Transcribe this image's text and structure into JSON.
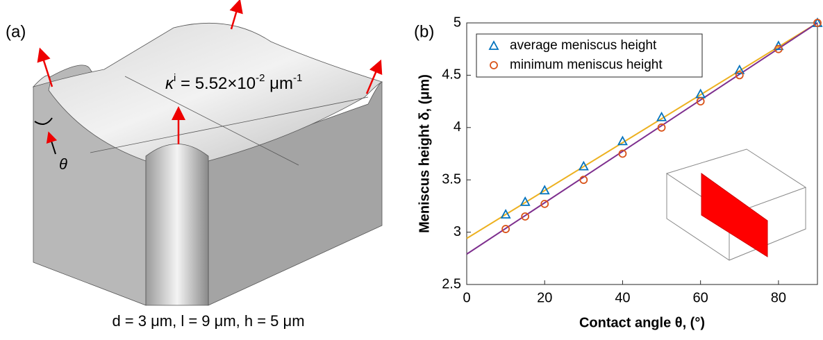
{
  "panel_a": {
    "label": "(a)",
    "kappa_label": [
      "κ",
      "i",
      " = 5.52×10",
      "-2",
      " μm",
      "-1"
    ],
    "theta": "θ",
    "caption": "d = 3 μm, l = 9 μm, h = 5 μm"
  },
  "chart_data": {
    "type": "scatter",
    "panel_label": "(b)",
    "x_label": "Contact angle θ, (°)",
    "y_label": "Meniscus height δ, (μm)",
    "xlim": [
      0,
      90
    ],
    "ylim": [
      2.5,
      5
    ],
    "xticks": [
      0,
      20,
      40,
      60,
      80
    ],
    "yticks": [
      2.5,
      3,
      3.5,
      4,
      4.5,
      5
    ],
    "legend": "upper left",
    "series": [
      {
        "name": "average meniscus height",
        "color": "#0072bd",
        "marker": "triangle",
        "x": [
          10,
          15,
          20,
          30,
          40,
          50,
          60,
          70,
          80,
          90
        ],
        "values": [
          3.17,
          3.29,
          3.4,
          3.63,
          3.87,
          4.1,
          4.32,
          4.55,
          4.78,
          5.0
        ]
      },
      {
        "name": "minimum meniscus height",
        "color": "#d95319",
        "marker": "circle",
        "x": [
          10,
          15,
          20,
          30,
          40,
          50,
          60,
          70,
          80,
          90
        ],
        "values": [
          3.03,
          3.15,
          3.27,
          3.5,
          3.75,
          4.0,
          4.25,
          4.5,
          4.75,
          5.0
        ]
      },
      {
        "color": "#edb120",
        "marker": "line",
        "x": [
          0,
          90
        ],
        "values": [
          2.94,
          5.0
        ]
      },
      {
        "color": "#7e2f8e",
        "marker": "line",
        "x": [
          0,
          90
        ],
        "values": [
          2.79,
          5.0
        ]
      }
    ]
  }
}
